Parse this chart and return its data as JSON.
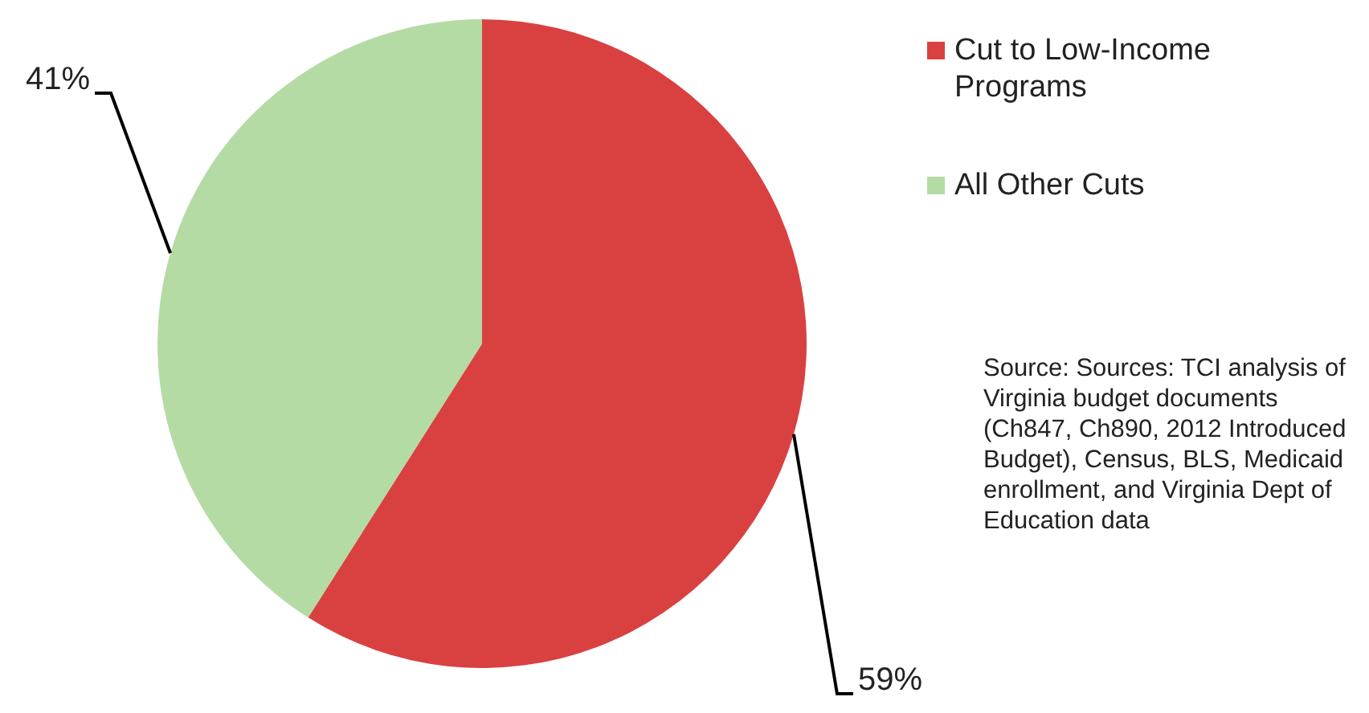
{
  "chart_data": {
    "type": "pie",
    "categories": [
      "Cut to Low-Income Programs",
      "All Other Cuts"
    ],
    "values": [
      59,
      41
    ],
    "colors": [
      "#d94141",
      "#b5dba4"
    ],
    "value_labels": [
      "59%",
      "41%"
    ],
    "legend": "top right",
    "annotations": [
      "Source: Sources: TCI analysis of Virginia budget documents (Ch847, Ch890, 2012 Introduced Budget), Census, BLS, Medicaid enrollment, and Virginia Dept of Education data"
    ]
  }
}
